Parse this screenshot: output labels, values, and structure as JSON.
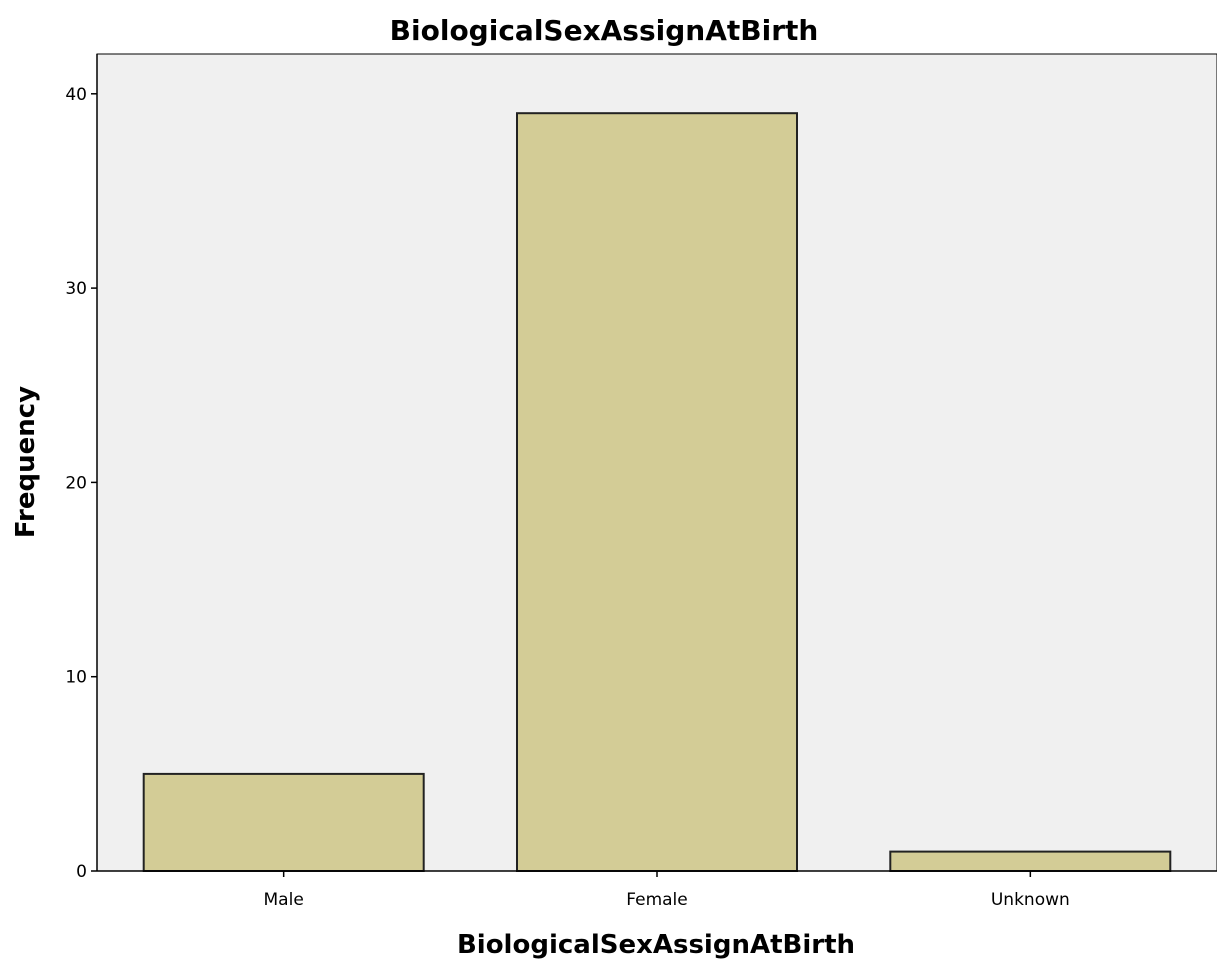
{
  "chart_data": {
    "type": "bar",
    "title": "BiologicalSexAssignAtBirth",
    "xlabel": "BiologicalSexAssignAtBirth",
    "ylabel": "Frequency",
    "categories": [
      "Male",
      "Female",
      "Unknown"
    ],
    "values": [
      5,
      39,
      1
    ],
    "ylim": [
      0,
      42
    ],
    "yticks": [
      0,
      10,
      20,
      30,
      40
    ],
    "grid": false,
    "legend": "none",
    "colors": {
      "bar_fill": "#d3cc96",
      "bar_stroke": "#222222",
      "plot_background": "#f0f0f0",
      "axis": "#000000"
    }
  }
}
